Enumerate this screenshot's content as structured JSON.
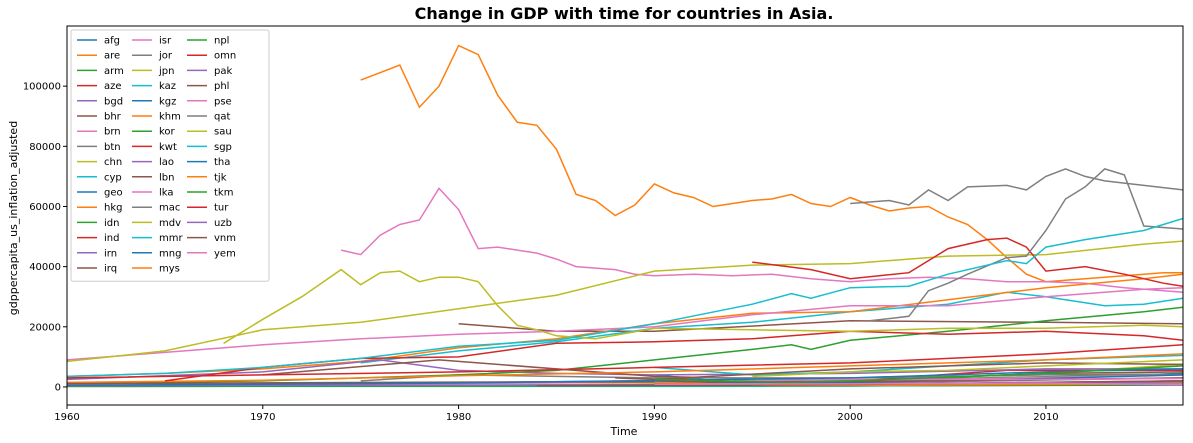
{
  "chart_data": {
    "type": "line",
    "title": "Change in GDP with time for countries in Asia.",
    "xlabel": "Time",
    "ylabel": "gdppercapita_us_inflation_adjusted",
    "xlim": [
      1960,
      2017
    ],
    "ylim": [
      -6000,
      120000
    ],
    "xticks": [
      1960,
      1970,
      1980,
      1990,
      2000,
      2010
    ],
    "yticks": [
      0,
      20000,
      40000,
      60000,
      80000,
      100000
    ],
    "grid": false,
    "legend_position": "top-left",
    "legend_columns": 3,
    "series": [
      {
        "name": "afg",
        "color": "#1f77b4",
        "x": [
          1960,
          1980,
          2002,
          2017
        ],
        "y": [
          400,
          400,
          400,
          600
        ]
      },
      {
        "name": "are",
        "color": "#ff7f0e",
        "x": [
          1975,
          1977,
          1978,
          1979,
          1980,
          1981,
          1982,
          1983,
          1984,
          1985,
          1986,
          1987,
          1988,
          1989,
          1990,
          1991,
          1992,
          1993,
          1994,
          1995,
          1996,
          1997,
          1998,
          1999,
          2000,
          2001,
          2002,
          2003,
          2004,
          2005,
          2006,
          2007,
          2008,
          2009,
          2010,
          2011,
          2012,
          2013,
          2014,
          2015,
          2016,
          2017
        ],
        "y": [
          102000,
          107000,
          93000,
          100000,
          113500,
          110500,
          97000,
          88000,
          87000,
          79000,
          64000,
          62000,
          57000,
          60500,
          67500,
          64500,
          63000,
          60000,
          61000,
          62000,
          62500,
          64000,
          61000,
          60000,
          63000,
          60500,
          58500,
          59500,
          60000,
          56500,
          54000,
          49000,
          43000,
          37500,
          35000,
          35500,
          36000,
          36500,
          37000,
          37500,
          38000,
          38000
        ]
      },
      {
        "name": "arm",
        "color": "#2ca02c",
        "x": [
          1990,
          1993,
          2000,
          2008,
          2017
        ],
        "y": [
          2300,
          1300,
          1900,
          4000,
          4200
        ]
      },
      {
        "name": "aze",
        "color": "#d62728",
        "x": [
          1990,
          1995,
          2000,
          2008,
          2017
        ],
        "y": [
          3000,
          1500,
          2000,
          5500,
          5500
        ]
      },
      {
        "name": "bgd",
        "color": "#9467bd",
        "x": [
          1960,
          1980,
          2000,
          2017
        ],
        "y": [
          400,
          400,
          600,
          1100
        ]
      },
      {
        "name": "bhr",
        "color": "#8c564b",
        "x": [
          1980,
          1985,
          1990,
          2000,
          2010,
          2017
        ],
        "y": [
          21000,
          18500,
          18500,
          22000,
          21500,
          21000
        ]
      },
      {
        "name": "brn",
        "color": "#e377c2",
        "x": [
          1974,
          1975,
          1976,
          1977,
          1978,
          1979,
          1980,
          1981,
          1982,
          1983,
          1984,
          1985,
          1986,
          1987,
          1988,
          1989,
          1990,
          1992,
          1994,
          1996,
          1998,
          2000,
          2002,
          2004,
          2006,
          2008,
          2010,
          2012,
          2014,
          2017
        ],
        "y": [
          45500,
          44000,
          50500,
          54000,
          55500,
          66000,
          59000,
          46000,
          46500,
          45500,
          44500,
          42500,
          40000,
          39500,
          39000,
          37500,
          37000,
          37500,
          37000,
          37500,
          36000,
          35000,
          36000,
          36500,
          36000,
          35000,
          35000,
          34500,
          33000,
          31500
        ]
      },
      {
        "name": "btn",
        "color": "#7f7f7f",
        "x": [
          1980,
          1990,
          2000,
          2010,
          2017
        ],
        "y": [
          500,
          800,
          1200,
          2300,
          3000
        ]
      },
      {
        "name": "chn",
        "color": "#bcbd22",
        "x": [
          1960,
          1980,
          2000,
          2010,
          2017
        ],
        "y": [
          200,
          300,
          1800,
          4500,
          7500
        ]
      },
      {
        "name": "cyp",
        "color": "#17becf",
        "x": [
          1975,
          1980,
          1985,
          1990,
          1995,
          2000,
          2005,
          2008,
          2010,
          2013,
          2015,
          2017
        ],
        "y": [
          8000,
          12000,
          15000,
          19500,
          21500,
          25000,
          27500,
          31500,
          30000,
          27000,
          27500,
          29500
        ]
      },
      {
        "name": "geo",
        "color": "#1f77b4",
        "x": [
          1990,
          1994,
          2000,
          2010,
          2017
        ],
        "y": [
          4000,
          1500,
          1800,
          3000,
          4500
        ]
      },
      {
        "name": "hkg",
        "color": "#ff7f0e",
        "x": [
          1960,
          1965,
          1970,
          1975,
          1980,
          1985,
          1990,
          1995,
          2000,
          2005,
          2010,
          2015,
          2017
        ],
        "y": [
          3500,
          4500,
          6000,
          8500,
          13000,
          16000,
          21000,
          24500,
          25000,
          29000,
          33000,
          36000,
          37500
        ]
      },
      {
        "name": "idn",
        "color": "#2ca02c",
        "x": [
          1960,
          1980,
          2000,
          2017
        ],
        "y": [
          700,
          1200,
          2200,
          4200
        ]
      },
      {
        "name": "ind",
        "color": "#d62728",
        "x": [
          1960,
          1980,
          2000,
          2017
        ],
        "y": [
          300,
          400,
          800,
          2000
        ]
      },
      {
        "name": "irn",
        "color": "#9467bd",
        "x": [
          1960,
          1970,
          1976,
          1980,
          1985,
          1990,
          2000,
          2010,
          2017
        ],
        "y": [
          2500,
          5000,
          9000,
          5500,
          4500,
          4000,
          4500,
          6000,
          6000
        ]
      },
      {
        "name": "irq",
        "color": "#8c564b",
        "x": [
          1970,
          1979,
          1990,
          2000,
          2010,
          2017
        ],
        "y": [
          4000,
          9000,
          3500,
          2000,
          4500,
          5000
        ]
      },
      {
        "name": "isr",
        "color": "#e377c2",
        "x": [
          1960,
          1965,
          1970,
          1975,
          1980,
          1985,
          1990,
          1995,
          2000,
          2005,
          2010,
          2015,
          2017
        ],
        "y": [
          9000,
          11500,
          14000,
          16000,
          17500,
          18500,
          20000,
          24000,
          27000,
          27000,
          30000,
          32500,
          33000
        ]
      },
      {
        "name": "jor",
        "color": "#7f7f7f",
        "x": [
          1975,
          1980,
          1990,
          2000,
          2010,
          2017
        ],
        "y": [
          2000,
          4000,
          3000,
          3000,
          4000,
          4000
        ]
      },
      {
        "name": "jpn",
        "color": "#bcbd22",
        "x": [
          1960,
          1965,
          1970,
          1975,
          1980,
          1985,
          1990,
          1995,
          2000,
          2005,
          2010,
          2015,
          2017
        ],
        "y": [
          8500,
          12000,
          19000,
          21500,
          26000,
          30500,
          38500,
          40500,
          41000,
          43500,
          44000,
          47500,
          48500
        ]
      },
      {
        "name": "kaz",
        "color": "#17becf",
        "x": [
          1990,
          1995,
          2000,
          2010,
          2017
        ],
        "y": [
          6500,
          4000,
          5000,
          9000,
          10500
        ]
      },
      {
        "name": "kgz",
        "color": "#1f77b4",
        "x": [
          1990,
          1995,
          2000,
          2017
        ],
        "y": [
          1000,
          700,
          800,
          1200
        ]
      },
      {
        "name": "khm",
        "color": "#ff7f0e",
        "x": [
          1993,
          2005,
          2017
        ],
        "y": [
          500,
          800,
          1300
        ]
      },
      {
        "name": "kor",
        "color": "#2ca02c",
        "x": [
          1960,
          1970,
          1980,
          1985,
          1990,
          1995,
          1997,
          1998,
          2000,
          2005,
          2010,
          2015,
          2017
        ],
        "y": [
          1000,
          2000,
          4000,
          5500,
          9000,
          12500,
          14000,
          12500,
          15500,
          18500,
          22000,
          25000,
          26500
        ]
      },
      {
        "name": "kwt",
        "color": "#d62728",
        "x": [
          1995,
          1998,
          2000,
          2003,
          2005,
          2007,
          2008,
          2009,
          2010,
          2012,
          2014,
          2016,
          2017
        ],
        "y": [
          41500,
          39000,
          36000,
          38000,
          46000,
          49000,
          49500,
          46500,
          38500,
          40000,
          37500,
          34500,
          33500
        ]
      },
      {
        "name": "lao",
        "color": "#9467bd",
        "x": [
          1984,
          2000,
          2017
        ],
        "y": [
          500,
          800,
          1800
        ]
      },
      {
        "name": "lbn",
        "color": "#8c564b",
        "x": [
          1988,
          1990,
          2000,
          2010,
          2017
        ],
        "y": [
          3000,
          2500,
          6000,
          8000,
          7500
        ]
      },
      {
        "name": "lka",
        "color": "#e377c2",
        "x": [
          1960,
          1980,
          2000,
          2017
        ],
        "y": [
          800,
          1100,
          2000,
          4000
        ]
      },
      {
        "name": "mac",
        "color": "#7f7f7f",
        "x": [
          2001,
          2003,
          2004,
          2005,
          2006,
          2008,
          2009,
          2010,
          2011,
          2012,
          2013,
          2014,
          2015,
          2017
        ],
        "y": [
          22000,
          23500,
          32000,
          34500,
          37500,
          43000,
          43500,
          52000,
          62500,
          66500,
          72500,
          70500,
          53500,
          52500
        ]
      },
      {
        "name": "mdv",
        "color": "#bcbd22",
        "x": [
          1995,
          2000,
          2005,
          2010,
          2017
        ],
        "y": [
          3500,
          5000,
          5500,
          7000,
          9000
        ]
      },
      {
        "name": "mmr",
        "color": "#17becf",
        "x": [
          1960,
          1990,
          2000,
          2017
        ],
        "y": [
          200,
          200,
          300,
          1300
        ]
      },
      {
        "name": "mng",
        "color": "#1f77b4",
        "x": [
          1981,
          1990,
          1993,
          2000,
          2010,
          2017
        ],
        "y": [
          1500,
          2000,
          1500,
          1500,
          2800,
          4000
        ]
      },
      {
        "name": "mys",
        "color": "#ff7f0e",
        "x": [
          1960,
          1970,
          1980,
          1990,
          2000,
          2010,
          2017
        ],
        "y": [
          1500,
          2200,
          3700,
          5000,
          7000,
          9000,
          11000
        ]
      },
      {
        "name": "npl",
        "color": "#2ca02c",
        "x": [
          1960,
          1980,
          2000,
          2017
        ],
        "y": [
          200,
          300,
          400,
          700
        ]
      },
      {
        "name": "omn",
        "color": "#d62728",
        "x": [
          1965,
          1970,
          1975,
          1980,
          1985,
          1990,
          1995,
          2000,
          2005,
          2010,
          2015,
          2017
        ],
        "y": [
          2000,
          6500,
          9500,
          10000,
          14500,
          15000,
          16000,
          18500,
          17500,
          18500,
          17000,
          15500
        ]
      },
      {
        "name": "pak",
        "color": "#9467bd",
        "x": [
          1960,
          1980,
          2000,
          2017
        ],
        "y": [
          400,
          600,
          900,
          1200
        ]
      },
      {
        "name": "phl",
        "color": "#8c564b",
        "x": [
          1960,
          1980,
          2000,
          2017
        ],
        "y": [
          1100,
          1600,
          1800,
          3000
        ]
      },
      {
        "name": "pse",
        "color": "#e377c2",
        "x": [
          1994,
          2000,
          2010,
          2017
        ],
        "y": [
          2000,
          2500,
          2500,
          2800
        ]
      },
      {
        "name": "qat",
        "color": "#7f7f7f",
        "x": [
          2000,
          2002,
          2003,
          2004,
          2005,
          2006,
          2008,
          2009,
          2010,
          2011,
          2012,
          2013,
          2015,
          2017
        ],
        "y": [
          61000,
          62000,
          60500,
          65500,
          62000,
          66500,
          67000,
          65500,
          70000,
          72500,
          70000,
          68500,
          67000,
          65500
        ]
      },
      {
        "name": "sau",
        "color": "#bcbd22",
        "x": [
          1968,
          1970,
          1972,
          1974,
          1975,
          1976,
          1977,
          1978,
          1979,
          1980,
          1981,
          1982,
          1983,
          1984,
          1985,
          1987,
          1990,
          1995,
          2000,
          2005,
          2010,
          2015,
          2017
        ],
        "y": [
          14500,
          22500,
          30000,
          39000,
          34000,
          38000,
          38500,
          35000,
          36500,
          36500,
          35000,
          27000,
          20500,
          19000,
          17000,
          16000,
          19500,
          19000,
          18500,
          19500,
          19500,
          20500,
          20000
        ]
      },
      {
        "name": "sgp",
        "color": "#17becf",
        "x": [
          1960,
          1965,
          1970,
          1975,
          1980,
          1985,
          1990,
          1995,
          1997,
          1998,
          2000,
          2003,
          2005,
          2008,
          2009,
          2010,
          2012,
          2015,
          2017
        ],
        "y": [
          3500,
          4500,
          6500,
          9500,
          13500,
          15500,
          21000,
          27500,
          31000,
          29500,
          33000,
          33500,
          37500,
          42000,
          41000,
          46500,
          49000,
          52000,
          56000
        ]
      },
      {
        "name": "tha",
        "color": "#1f77b4",
        "x": [
          1960,
          1980,
          2000,
          2010,
          2017
        ],
        "y": [
          500,
          1300,
          3000,
          5000,
          6000
        ]
      },
      {
        "name": "tjk",
        "color": "#ff7f0e",
        "x": [
          1990,
          1996,
          2000,
          2017
        ],
        "y": [
          1500,
          500,
          500,
          1000
        ]
      },
      {
        "name": "tkm",
        "color": "#2ca02c",
        "x": [
          1990,
          1997,
          2000,
          2010,
          2017
        ],
        "y": [
          2500,
          1500,
          2000,
          4500,
          7000
        ]
      },
      {
        "name": "tur",
        "color": "#d62728",
        "x": [
          1960,
          1970,
          1980,
          1990,
          2000,
          2010,
          2017
        ],
        "y": [
          3000,
          4000,
          5000,
          6500,
          8000,
          11000,
          14000
        ]
      },
      {
        "name": "uzb",
        "color": "#9467bd",
        "x": [
          1990,
          1995,
          2000,
          2017
        ],
        "y": [
          1000,
          800,
          900,
          2000
        ]
      },
      {
        "name": "vnm",
        "color": "#8c564b",
        "x": [
          1984,
          2000,
          2017
        ],
        "y": [
          400,
          800,
          2000
        ]
      },
      {
        "name": "yem",
        "color": "#e377c2",
        "x": [
          1990,
          2000,
          2010,
          2017
        ],
        "y": [
          900,
          1000,
          1300,
          700
        ]
      }
    ]
  }
}
